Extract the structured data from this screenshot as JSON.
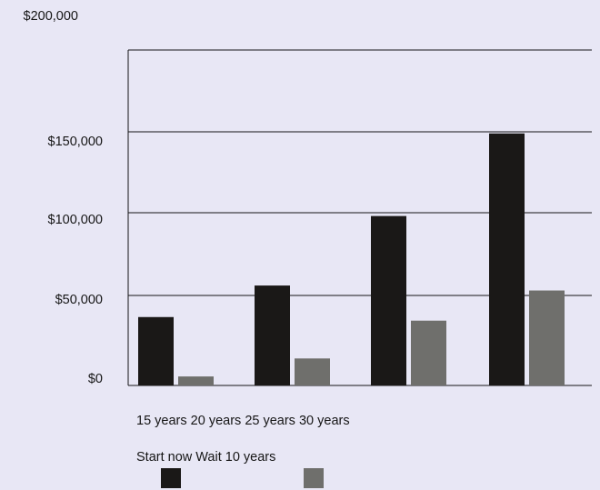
{
  "chart_data": {
    "type": "bar",
    "categories": [
      "15 years",
      "20 years",
      "25 years",
      "30 years"
    ],
    "series": [
      {
        "name": "Start now",
        "values": [
          38000,
          56000,
          98000,
          149000
        ],
        "color": "#1a1817"
      },
      {
        "name": "Wait 10 years",
        "values": [
          5000,
          15000,
          36000,
          53000
        ],
        "color": "#6f6f6c"
      }
    ],
    "y_ticks": [
      "$0",
      "$50,000",
      "$100,000",
      "$150,000",
      "$200,000"
    ],
    "y_tick_values": [
      0,
      50000,
      100000,
      150000,
      200000
    ],
    "ylim": [
      0,
      200000
    ],
    "grid": true,
    "legend": "bottom-left"
  },
  "colors": {
    "background": "#e8e7f5",
    "grid": "#161616"
  }
}
